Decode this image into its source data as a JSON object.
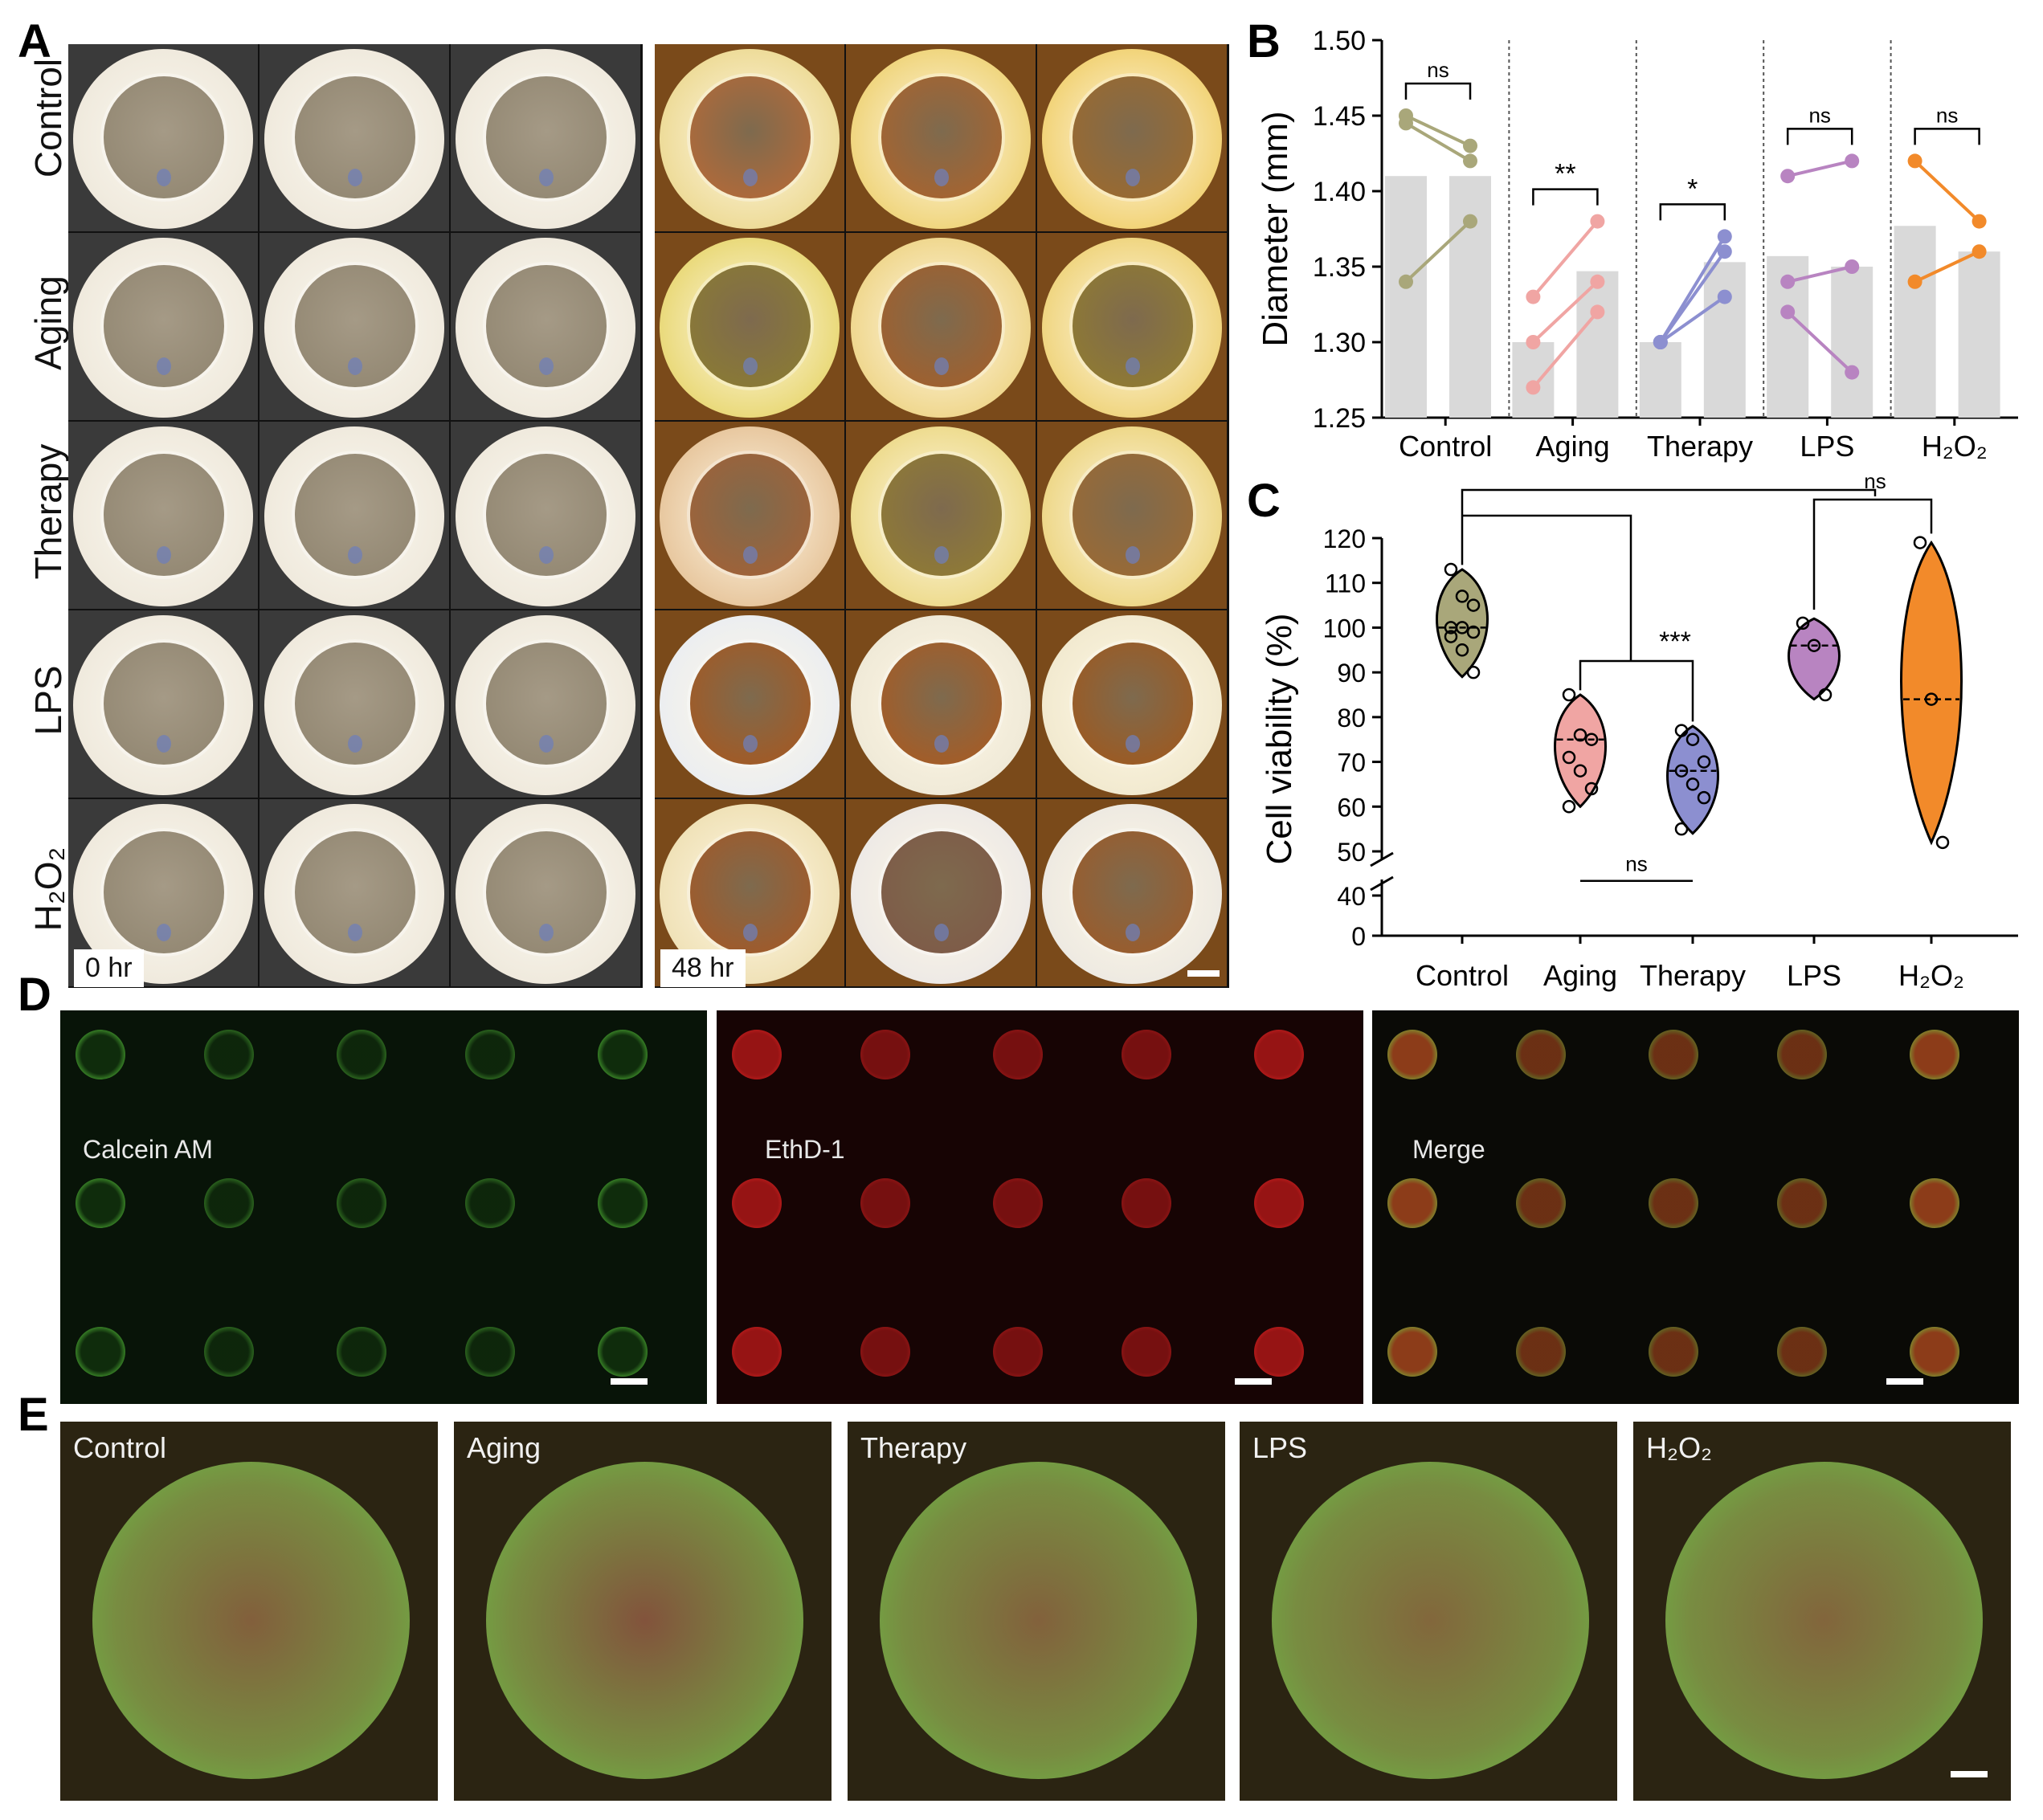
{
  "panel_letters": {
    "a": "A",
    "b": "B",
    "c": "C",
    "d": "D",
    "e": "E"
  },
  "panel_a": {
    "row_labels": [
      "Control",
      "Aging",
      "Therapy",
      "LPS",
      "H₂O₂"
    ],
    "time_labels": [
      "0 hr",
      "48 hr"
    ]
  },
  "chart_data": [
    {
      "panel": "B",
      "type": "bar",
      "ylabel": "Diameter (mm)",
      "ylim": [
        1.25,
        1.5
      ],
      "yticks": [
        "1.25",
        "1.30",
        "1.35",
        "1.40",
        "1.45",
        "1.50"
      ],
      "categories": [
        "Control",
        "Aging",
        "Therapy",
        "LPS",
        "H₂O₂"
      ],
      "series": [
        {
          "colors": {
            "Control": "#a9a77a",
            "Aging": "#f0a5a3",
            "Therapy": "#8c8fd0",
            "LPS": "#b884c1",
            "H₂O₂": "#f28a2a"
          }
        }
      ],
      "groups": [
        {
          "category": "Control",
          "bars": [
            1.41,
            1.41
          ],
          "pairs": [
            [
              1.45,
              1.43
            ],
            [
              1.445,
              1.42
            ],
            [
              1.34,
              1.38
            ]
          ],
          "sig": "ns"
        },
        {
          "category": "Aging",
          "bars": [
            1.3,
            1.347
          ],
          "pairs": [
            [
              1.33,
              1.38
            ],
            [
              1.3,
              1.34
            ],
            [
              1.27,
              1.32
            ]
          ],
          "sig": "**"
        },
        {
          "category": "Therapy",
          "bars": [
            1.3,
            1.353
          ],
          "pairs": [
            [
              1.3,
              1.37
            ],
            [
              1.3,
              1.36
            ],
            [
              1.3,
              1.33
            ]
          ],
          "sig": "*"
        },
        {
          "category": "LPS",
          "bars": [
            1.357,
            1.35
          ],
          "pairs": [
            [
              1.41,
              1.42
            ],
            [
              1.34,
              1.35
            ],
            [
              1.32,
              1.28
            ]
          ],
          "sig": "ns"
        },
        {
          "category": "H₂O₂",
          "bars": [
            1.377,
            1.36
          ],
          "pairs": [
            [
              1.42,
              1.38
            ],
            [
              1.34,
              1.36
            ]
          ],
          "sig": "ns"
        }
      ]
    },
    {
      "panel": "C",
      "type": "violin",
      "ylabel": "Cell viability (%)",
      "yticks_upper": [
        "50",
        "60",
        "70",
        "80",
        "90",
        "100",
        "110",
        "120"
      ],
      "yticks_lower": [
        "0",
        "40"
      ],
      "categories": [
        "Control",
        "Aging",
        "Therapy",
        "LPS",
        "H₂O₂"
      ],
      "colors": [
        "#a9a77a",
        "#f0a5a3",
        "#8c8fd0",
        "#b884c1",
        "#f28a2a"
      ],
      "groups": [
        {
          "category": "Control",
          "points": [
            113,
            107,
            105,
            100,
            100,
            99,
            98,
            95,
            90
          ],
          "median": 100,
          "min": 89,
          "max": 113
        },
        {
          "category": "Aging",
          "points": [
            85,
            76,
            75,
            71,
            68,
            64,
            60
          ],
          "median": 75,
          "min": 60,
          "max": 85
        },
        {
          "category": "Therapy",
          "points": [
            77,
            75,
            70,
            68,
            65,
            62,
            55
          ],
          "median": 68,
          "min": 54,
          "max": 78
        },
        {
          "category": "LPS",
          "points": [
            101,
            96,
            85
          ],
          "median": 96,
          "min": 84,
          "max": 102
        },
        {
          "category": "H₂O₂",
          "points": [
            119,
            84,
            52
          ],
          "median": 84,
          "min": 52,
          "max": 119
        }
      ],
      "annotations": [
        "ns",
        "***",
        "ns"
      ]
    }
  ],
  "panel_d": {
    "labels": [
      "Calcein AM",
      "EthD-1",
      "Merge"
    ]
  },
  "panel_e": {
    "labels": [
      "Control",
      "Aging",
      "Therapy",
      "LPS",
      "H₂O₂"
    ]
  }
}
